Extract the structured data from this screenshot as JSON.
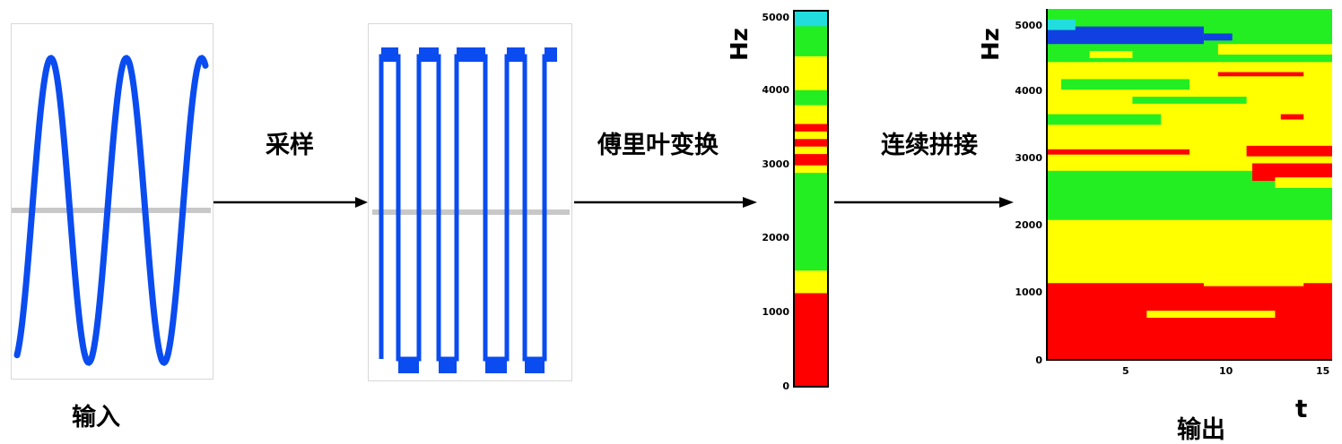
{
  "flow": {
    "input_label": "输入",
    "step1_label": "采样",
    "step2_label": "傅里叶变换",
    "step3_label": "连续拼接",
    "output_label": "输出"
  },
  "spectrum": {
    "unit": "Hz",
    "ticks": [
      "0",
      "1000",
      "2000",
      "3000",
      "4000",
      "5000"
    ]
  },
  "spectrogram": {
    "y_unit": "Hz",
    "x_unit": "t",
    "y_ticks": [
      "0",
      "1000",
      "2000",
      "3000",
      "4000",
      "5000"
    ],
    "x_ticks": [
      "5",
      "10",
      "15"
    ]
  },
  "colors": {
    "wave": "#0a4cf0",
    "baseline": "#c8c8c8",
    "arrow": "#000000",
    "red": "#ff0000",
    "yellow": "#ffff00",
    "green": "#22ee22",
    "cyan": "#22dddd",
    "blue": "#1040e0"
  }
}
